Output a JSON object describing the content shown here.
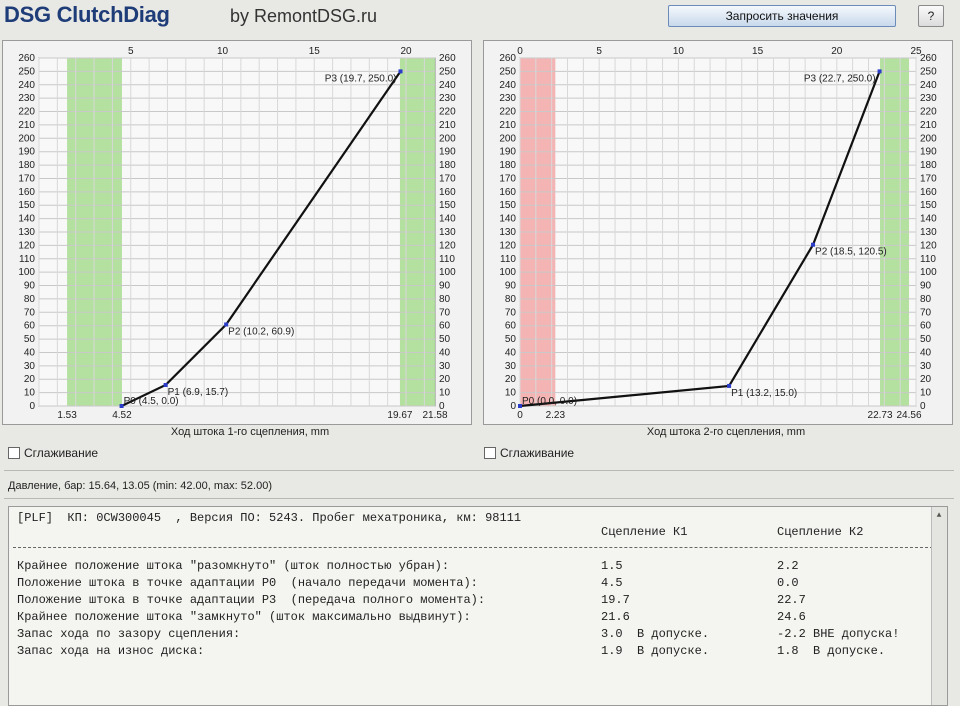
{
  "header": {
    "title": "DSG ClutchDiag",
    "by": "by RemontDSG.ru",
    "request_button": "Запросить значения",
    "help_button": "?"
  },
  "charts": {
    "k1": {
      "xlabel": "Ход штока 1-го сцепления, mm",
      "smoothing_label": "Сглаживание",
      "bottom_ticks": [
        "1.53",
        "4.52",
        "19.67",
        "21.58"
      ],
      "point_labels": [
        "P0 (4.5, 0.0)",
        "P1 (6.9, 15.7)",
        "P2 (10.2, 60.9)",
        "P3 (19.7, 250.0)"
      ]
    },
    "k2": {
      "xlabel": "Ход штока 2-го сцепления, mm",
      "smoothing_label": "Сглаживание",
      "bottom_ticks": [
        "0",
        "2.23",
        "22.73",
        "24.56"
      ],
      "point_labels": [
        "P0 (0.0, 0.0)",
        "P1 (13.2, 15.0)",
        "P2 (18.5, 120.5)",
        "P3 (22.7, 250.0)"
      ]
    }
  },
  "chart_data": [
    {
      "type": "line",
      "xlabel": "Ход штока 1-го сцепления, mm",
      "xlim": [
        0,
        21.58
      ],
      "ylim": [
        0,
        260
      ],
      "x_ticks": [
        5,
        10,
        15,
        20
      ],
      "y_ticks": [
        0,
        10,
        20,
        30,
        40,
        50,
        60,
        70,
        80,
        90,
        100,
        110,
        120,
        130,
        140,
        150,
        160,
        170,
        180,
        190,
        200,
        210,
        220,
        230,
        240,
        250,
        260
      ],
      "grid": true,
      "zones": [
        {
          "from": 1.53,
          "to": 4.52,
          "color": "#a8dc90"
        },
        {
          "from": 19.67,
          "to": 21.58,
          "color": "#a8dc90"
        }
      ],
      "series": [
        {
          "x": [
            4.5,
            6.9,
            10.2,
            19.7
          ],
          "y": [
            0.0,
            15.7,
            60.9,
            250.0
          ]
        }
      ]
    },
    {
      "type": "line",
      "xlabel": "Ход штока 2-го сцепления, mm",
      "xlim": [
        0,
        25
      ],
      "ylim": [
        0,
        260
      ],
      "x_ticks": [
        0,
        5,
        10,
        15,
        20,
        25
      ],
      "y_ticks": [
        0,
        10,
        20,
        30,
        40,
        50,
        60,
        70,
        80,
        90,
        100,
        110,
        120,
        130,
        140,
        150,
        160,
        170,
        180,
        190,
        200,
        210,
        220,
        230,
        240,
        250,
        260
      ],
      "grid": true,
      "zones": [
        {
          "from": 0,
          "to": 2.23,
          "color": "#f4a8a8"
        },
        {
          "from": 22.73,
          "to": 24.56,
          "color": "#a8dc90"
        }
      ],
      "series": [
        {
          "x": [
            0.0,
            13.2,
            18.5,
            22.7
          ],
          "y": [
            0.0,
            15.0,
            120.5,
            250.0
          ]
        }
      ]
    }
  ],
  "pressure_text": "Давление, бар: 15.64, 13.05 (min: 42.00, max: 52.00)",
  "report": {
    "header_line": "[PLF]  КП: 0CW300045  , Версия ПО: 5243. Пробег мехатроника, км: 98111",
    "col_k1_title": "Сцепление К1",
    "col_k2_title": "Сцепление К2",
    "rows": [
      {
        "label": "Крайнее положение штока \"разомкнуто\" (шток полностью убран):",
        "k1": "1.5",
        "k2": "2.2"
      },
      {
        "label": "Положение штока в точке адаптации P0  (начало передачи момента):",
        "k1": "4.5",
        "k2": "0.0"
      },
      {
        "label": "Положение штока в точке адаптации P3  (передача полного момента):",
        "k1": "19.7",
        "k2": "22.7"
      },
      {
        "label": "Крайнее положение штока \"замкнуто\" (шток максимально выдвинут):",
        "k1": "21.6",
        "k2": "24.6"
      },
      {
        "label": "Запас хода по зазору сцепления:",
        "k1": "3.0  В допуске.",
        "k2": "-2.2 ВНЕ допуска!"
      },
      {
        "label": "Запас хода на износ диска:",
        "k1": "1.9  В допуске.",
        "k2": "1.8  В допуске."
      }
    ]
  }
}
